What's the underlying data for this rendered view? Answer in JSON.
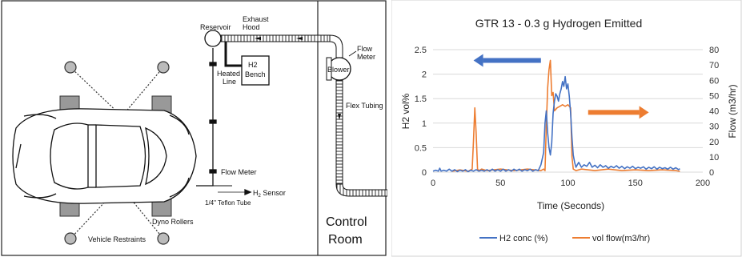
{
  "schematic": {
    "labels": {
      "reservoir": "Reservoir",
      "exhaust_hood_line1": "Exhaust",
      "exhaust_hood_line2": "Hood",
      "flow_meter_top_line1": "Flow",
      "flow_meter_top_line2": "Meter",
      "blower": "Blower",
      "heated_line_line1": "Heated",
      "heated_line_line2": "Line",
      "h2_bench_line1": "H2",
      "h2_bench_line2": "Bench",
      "flex_tubing": "Flex Tubing",
      "flow_meter_bottom": "Flow Meter",
      "h2_sensor_prefix": "H",
      "h2_sensor_sub": "2",
      "h2_sensor_suffix": " Sensor",
      "teflon_tube": "1/4\" Teflon Tube",
      "dyno_rollers": "Dyno Rollers",
      "vehicle_restraints": "Vehicle Restraints",
      "control_room_line1": "Control",
      "control_room_line2": "Room"
    }
  },
  "chart_data": {
    "type": "line",
    "title": "GTR 13 - 0.3 g Hydrogen Emitted",
    "xlabel": "Time (Seconds)",
    "ylabel": "H2 vol%",
    "y2label": "Flow (m3/hr)",
    "xlim": [
      0,
      200
    ],
    "ylim": [
      0,
      2.5
    ],
    "y2lim": [
      0,
      80
    ],
    "x_ticks": [
      0,
      50,
      100,
      150,
      200
    ],
    "y_ticks": [
      0,
      0.5,
      1,
      1.5,
      2,
      2.5
    ],
    "y2_ticks": [
      0,
      10,
      20,
      30,
      40,
      50,
      60,
      70,
      80
    ],
    "x_tick_labels": [
      "0",
      "50",
      "100",
      "150",
      "200"
    ],
    "y_tick_labels": [
      "0",
      "0.5",
      "1",
      "1.5",
      "2",
      "2.5"
    ],
    "y2_tick_labels": [
      "0",
      "10",
      "20",
      "30",
      "40",
      "50",
      "60",
      "70",
      "80"
    ],
    "grid": "horizontal",
    "legend_position": "bottom",
    "series": [
      {
        "name": "H2 conc (%)",
        "axis": "left",
        "color": "#4472C4",
        "x": [
          0,
          2,
          4,
          5,
          6,
          8,
          10,
          12,
          14,
          16,
          18,
          20,
          22,
          24,
          26,
          28,
          30,
          32,
          34,
          36,
          38,
          40,
          42,
          44,
          46,
          48,
          50,
          52,
          54,
          56,
          58,
          60,
          62,
          64,
          66,
          68,
          70,
          72,
          74,
          76,
          78,
          80,
          82,
          83,
          84,
          85,
          86,
          87,
          88,
          89,
          90,
          91,
          92,
          93,
          94,
          95,
          96,
          97,
          98,
          99,
          100,
          101,
          102,
          103,
          104,
          105,
          106,
          107,
          108,
          110,
          112,
          114,
          116,
          118,
          120,
          122,
          124,
          126,
          128,
          130,
          132,
          134,
          136,
          138,
          140,
          142,
          144,
          146,
          148,
          150,
          152,
          154,
          156,
          158,
          160,
          162,
          164,
          166,
          168,
          170,
          172,
          174,
          176,
          178,
          180,
          182,
          183
        ],
        "values": [
          0.02,
          0.04,
          0.02,
          0.08,
          0.02,
          0.04,
          0.02,
          0.06,
          0.02,
          0.05,
          0.01,
          0.04,
          0.02,
          0.05,
          0.01,
          0.04,
          0.02,
          0.05,
          0.02,
          0.04,
          0.02,
          0.05,
          0.02,
          0.06,
          0.02,
          0.05,
          0.02,
          0.06,
          0.02,
          0.05,
          0.02,
          0.06,
          0.03,
          0.06,
          0.02,
          0.05,
          0.03,
          0.06,
          0.02,
          0.05,
          0.03,
          0.15,
          0.4,
          1.0,
          1.25,
          0.8,
          0.5,
          0.35,
          0.6,
          1.2,
          1.45,
          1.6,
          1.55,
          1.45,
          1.6,
          1.7,
          1.85,
          1.75,
          1.95,
          1.7,
          1.8,
          1.55,
          1.2,
          0.7,
          0.35,
          0.2,
          0.1,
          0.15,
          0.2,
          0.1,
          0.15,
          0.12,
          0.2,
          0.1,
          0.14,
          0.09,
          0.15,
          0.1,
          0.13,
          0.08,
          0.12,
          0.09,
          0.13,
          0.08,
          0.12,
          0.07,
          0.11,
          0.08,
          0.12,
          0.07,
          0.1,
          0.08,
          0.11,
          0.06,
          0.1,
          0.07,
          0.11,
          0.06,
          0.1,
          0.07,
          0.09,
          0.06,
          0.1,
          0.06,
          0.09,
          0.05,
          0.07
        ]
      },
      {
        "name": "vol flow(m3/hr)",
        "axis": "right",
        "color": "#ED7D31",
        "x": [
          14,
          20,
          26,
          29,
          30,
          31,
          32,
          33,
          34,
          36,
          40,
          50,
          60,
          70,
          80,
          82,
          83,
          84,
          85,
          86,
          87,
          88,
          89,
          90,
          92,
          94,
          96,
          98,
          100,
          102,
          103,
          104,
          106,
          110,
          120,
          130,
          140,
          150,
          160,
          170,
          180,
          183
        ],
        "values": [
          0.5,
          1.5,
          0.5,
          2,
          20,
          42,
          25,
          2,
          1,
          2,
          1,
          2,
          1,
          2,
          1,
          2,
          1,
          30,
          55,
          67,
          73,
          50,
          52,
          40,
          42,
          43,
          44,
          43,
          44,
          42,
          10,
          2,
          1,
          2,
          1,
          2,
          1,
          1.5,
          1,
          1.5,
          1,
          0.5
        ]
      }
    ],
    "annotations": [
      {
        "type": "arrow",
        "direction": "left",
        "color": "#4472C4",
        "x_from": 80,
        "x_to": 30,
        "y": 2.28
      },
      {
        "type": "arrow",
        "direction": "right",
        "color": "#ED7D31",
        "x_from": 115,
        "x_to": 160,
        "y": 1.22
      }
    ]
  }
}
